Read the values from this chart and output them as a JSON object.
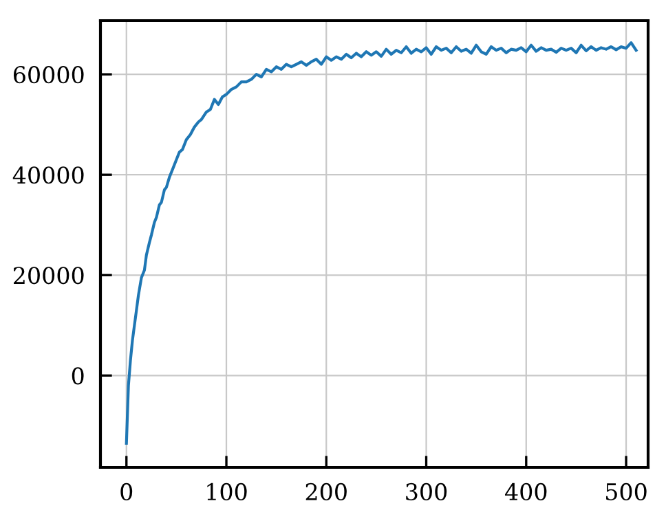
{
  "chart_data": {
    "type": "line",
    "xlim": [
      -26,
      522
    ],
    "ylim": [
      -18300,
      70700
    ],
    "xticks": [
      0,
      100,
      200,
      300,
      400,
      500
    ],
    "yticks": [
      0,
      20000,
      40000,
      60000
    ],
    "grid": true,
    "series": [
      {
        "color": "#1f77b4",
        "x": [
          0,
          2,
          4,
          6,
          8,
          10,
          12,
          15,
          18,
          20,
          23,
          25,
          28,
          30,
          33,
          35,
          38,
          40,
          43,
          46,
          50,
          53,
          56,
          60,
          64,
          68,
          72,
          75,
          80,
          84,
          88,
          92,
          96,
          100,
          105,
          110,
          115,
          120,
          125,
          130,
          135,
          140,
          145,
          150,
          155,
          160,
          165,
          170,
          175,
          180,
          185,
          190,
          195,
          200,
          205,
          210,
          215,
          220,
          225,
          230,
          235,
          240,
          245,
          250,
          255,
          260,
          265,
          270,
          275,
          280,
          285,
          290,
          295,
          300,
          305,
          310,
          315,
          320,
          325,
          330,
          335,
          340,
          345,
          350,
          355,
          360,
          365,
          370,
          375,
          380,
          385,
          390,
          395,
          400,
          405,
          410,
          415,
          420,
          425,
          430,
          435,
          440,
          445,
          450,
          455,
          460,
          465,
          470,
          475,
          480,
          485,
          490,
          495,
          500,
          505,
          510
        ],
        "values": [
          -13500,
          -2000,
          3000,
          7000,
          10000,
          13000,
          16000,
          19500,
          21000,
          24000,
          26500,
          28000,
          30500,
          31500,
          34000,
          34500,
          37000,
          37500,
          39500,
          41000,
          43000,
          44500,
          45000,
          47000,
          48000,
          49500,
          50500,
          51000,
          52500,
          53000,
          55000,
          54000,
          55500,
          56000,
          57000,
          57500,
          58500,
          58500,
          59000,
          60000,
          59500,
          61000,
          60500,
          61500,
          61000,
          62000,
          61500,
          62000,
          62500,
          61800,
          62500,
          63000,
          62000,
          63500,
          62800,
          63500,
          63000,
          64000,
          63300,
          64200,
          63500,
          64500,
          63800,
          64500,
          63600,
          65000,
          64000,
          64800,
          64300,
          65500,
          64200,
          65000,
          64500,
          65300,
          64000,
          65500,
          64800,
          65200,
          64300,
          65500,
          64600,
          65000,
          64200,
          65800,
          64500,
          64000,
          65500,
          64800,
          65200,
          64300,
          65000,
          64800,
          65300,
          64500,
          65800,
          64600,
          65300,
          64800,
          65000,
          64400,
          65200,
          64800,
          65200,
          64300,
          65800,
          64700,
          65500,
          64800,
          65300,
          65000,
          65500,
          64900,
          65500,
          65200,
          66300,
          64800
        ]
      }
    ]
  }
}
